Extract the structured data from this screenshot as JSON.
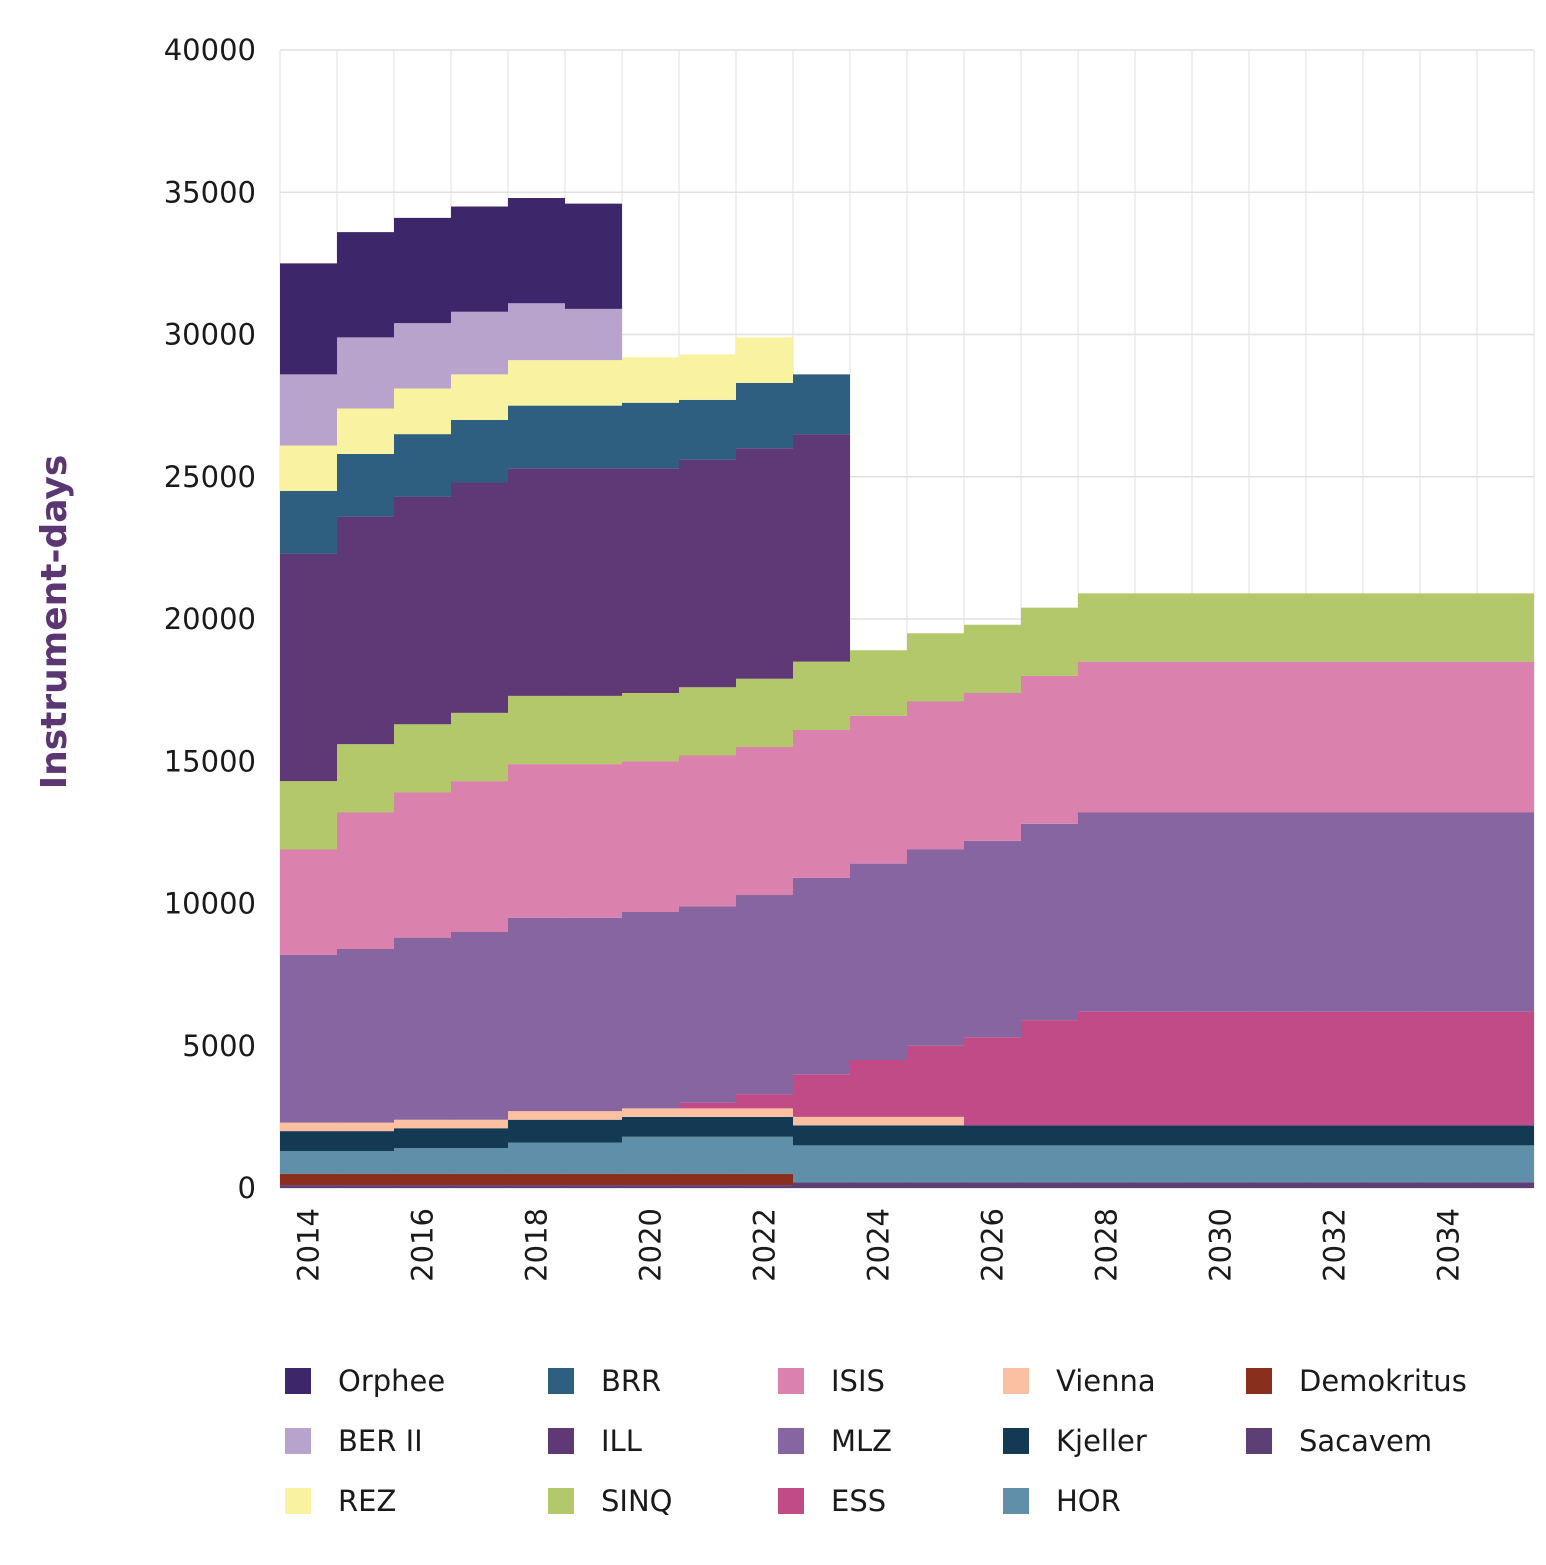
{
  "chart_data": {
    "type": "area",
    "stacked": true,
    "step": true,
    "ylabel": "Instrument-days",
    "xlabel": "",
    "ylim": [
      0,
      40000
    ],
    "yticks": [
      0,
      5000,
      10000,
      15000,
      20000,
      25000,
      30000,
      35000,
      40000
    ],
    "xticks": [
      2014,
      2016,
      2018,
      2020,
      2022,
      2024,
      2026,
      2028,
      2030,
      2032,
      2034
    ],
    "x": [
      2014,
      2015,
      2016,
      2017,
      2018,
      2019,
      2020,
      2021,
      2022,
      2023,
      2024,
      2025,
      2026,
      2027,
      2028,
      2029,
      2030,
      2031,
      2032,
      2033,
      2034,
      2035
    ],
    "grid": true,
    "legend_position": "bottom",
    "series": [
      {
        "name": "Sacavem",
        "color": "#5c3f74",
        "values": [
          100,
          100,
          100,
          100,
          100,
          100,
          100,
          100,
          100,
          200,
          200,
          200,
          200,
          200,
          200,
          200,
          200,
          200,
          200,
          200,
          200,
          200
        ]
      },
      {
        "name": "Demokritus",
        "color": "#8a2f1e",
        "values": [
          400,
          400,
          400,
          400,
          400,
          400,
          400,
          400,
          400,
          0,
          0,
          0,
          0,
          0,
          0,
          0,
          0,
          0,
          0,
          0,
          0,
          0
        ]
      },
      {
        "name": "HOR",
        "color": "#5f8fa9",
        "values": [
          800,
          800,
          900,
          900,
          1100,
          1100,
          1300,
          1300,
          1300,
          1300,
          1300,
          1300,
          1300,
          1300,
          1300,
          1300,
          1300,
          1300,
          1300,
          1300,
          1300,
          1300
        ]
      },
      {
        "name": "Kjeller",
        "color": "#133a52",
        "values": [
          700,
          700,
          700,
          700,
          800,
          800,
          700,
          700,
          700,
          700,
          700,
          700,
          700,
          700,
          700,
          700,
          700,
          700,
          700,
          700,
          700,
          700
        ]
      },
      {
        "name": "Vienna",
        "color": "#fbc0a1",
        "values": [
          300,
          300,
          300,
          300,
          300,
          300,
          300,
          300,
          300,
          300,
          300,
          300,
          0,
          0,
          0,
          0,
          0,
          0,
          0,
          0,
          0,
          0
        ]
      },
      {
        "name": "ESS",
        "color": "#c04b87",
        "values": [
          0,
          0,
          0,
          0,
          0,
          0,
          0,
          200,
          500,
          1500,
          2000,
          2500,
          3100,
          3700,
          4000,
          4000,
          4000,
          4000,
          4000,
          4000,
          4000,
          4000
        ]
      },
      {
        "name": "MLZ",
        "color": "#8765a1",
        "values": [
          5900,
          6100,
          6400,
          6600,
          6800,
          6800,
          6900,
          6900,
          7000,
          6900,
          6900,
          6900,
          6900,
          6900,
          7000,
          7000,
          7000,
          7000,
          7000,
          7000,
          7000,
          7000
        ]
      },
      {
        "name": "ISIS",
        "color": "#da81ae",
        "values": [
          3700,
          4800,
          5100,
          5300,
          5400,
          5400,
          5300,
          5300,
          5200,
          5200,
          5200,
          5200,
          5200,
          5200,
          5300,
          5300,
          5300,
          5300,
          5300,
          5300,
          5300,
          5300
        ]
      },
      {
        "name": "SINQ",
        "color": "#b3c86a",
        "values": [
          2400,
          2400,
          2400,
          2400,
          2400,
          2400,
          2400,
          2400,
          2400,
          2400,
          2300,
          2400,
          2400,
          2400,
          2400,
          2400,
          2400,
          2400,
          2400,
          2400,
          2400,
          2400
        ]
      },
      {
        "name": "ILL",
        "color": "#5f3976",
        "values": [
          8000,
          8000,
          8000,
          8100,
          8000,
          8000,
          7900,
          8000,
          8100,
          8000,
          0,
          0,
          0,
          0,
          0,
          0,
          0,
          0,
          0,
          0,
          0,
          0
        ]
      },
      {
        "name": "BRR",
        "color": "#2e5f80",
        "values": [
          2200,
          2200,
          2200,
          2200,
          2200,
          2200,
          2300,
          2100,
          2300,
          2100,
          0,
          0,
          0,
          0,
          0,
          0,
          0,
          0,
          0,
          0,
          0,
          0
        ]
      },
      {
        "name": "REZ",
        "color": "#f9f3a1",
        "values": [
          1600,
          1600,
          1600,
          1600,
          1600,
          1600,
          1600,
          1600,
          1600,
          0,
          0,
          0,
          0,
          0,
          0,
          0,
          0,
          0,
          0,
          0,
          0,
          0
        ]
      },
      {
        "name": "BER II",
        "color": "#b7a3cc",
        "values": [
          2500,
          2500,
          2300,
          2200,
          2000,
          1800,
          0,
          0,
          0,
          0,
          0,
          0,
          0,
          0,
          0,
          0,
          0,
          0,
          0,
          0,
          0,
          0
        ]
      },
      {
        "name": "Orphee",
        "color": "#3d276a",
        "values": [
          3900,
          3700,
          3700,
          3700,
          3700,
          3700,
          0,
          0,
          0,
          0,
          0,
          0,
          0,
          0,
          0,
          0,
          0,
          0,
          0,
          0,
          0,
          0
        ]
      }
    ],
    "legend": [
      {
        "name": "Orphee",
        "color": "#3d276a"
      },
      {
        "name": "BRR",
        "color": "#2e5f80"
      },
      {
        "name": "ISIS",
        "color": "#da81ae"
      },
      {
        "name": "Vienna",
        "color": "#fbc0a1"
      },
      {
        "name": "Demokritus",
        "color": "#8a2f1e"
      },
      {
        "name": "BER II",
        "color": "#b7a3cc"
      },
      {
        "name": "ILL",
        "color": "#5f3976"
      },
      {
        "name": "MLZ",
        "color": "#8765a1"
      },
      {
        "name": "Kjeller",
        "color": "#133a52"
      },
      {
        "name": "Sacavem",
        "color": "#5c3f74"
      },
      {
        "name": "REZ",
        "color": "#f9f3a1"
      },
      {
        "name": "SINQ",
        "color": "#b3c86a"
      },
      {
        "name": "ESS",
        "color": "#c04b87"
      },
      {
        "name": "HOR",
        "color": "#5f8fa9"
      }
    ]
  }
}
